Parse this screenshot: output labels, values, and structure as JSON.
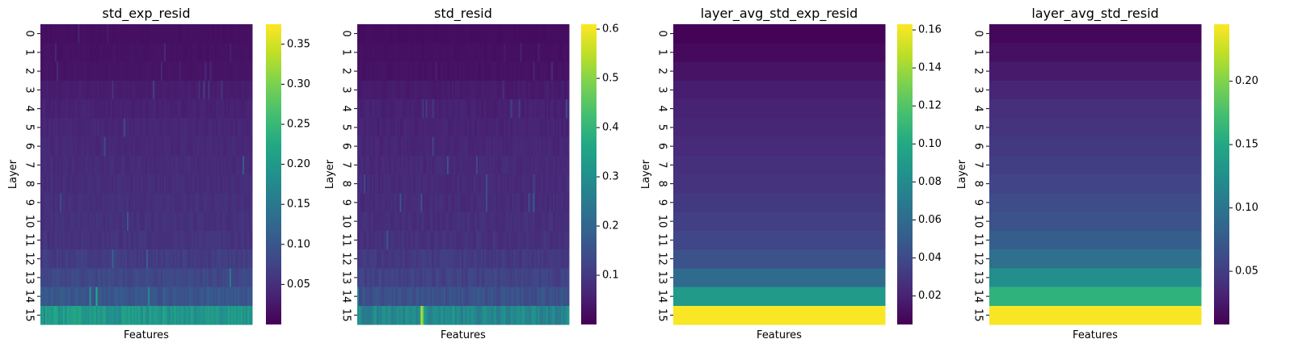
{
  "chart_data": [
    {
      "type": "heatmap",
      "title": "std_exp_resid",
      "xlabel": "Features",
      "ylabel": "Layer",
      "y_categories": [
        "0",
        "1",
        "2",
        "3",
        "4",
        "5",
        "6",
        "7",
        "8",
        "9",
        "10",
        "11",
        "12",
        "13",
        "14",
        "15"
      ],
      "row_base_values": [
        0.015,
        0.018,
        0.02,
        0.03,
        0.035,
        0.04,
        0.042,
        0.045,
        0.047,
        0.05,
        0.052,
        0.055,
        0.065,
        0.08,
        0.1,
        0.2
      ],
      "feature_noise": 0.25,
      "colormap": "viridis",
      "vmin": 0.0,
      "vmax": 0.375,
      "colorbar_ticks": [
        0.05,
        0.1,
        0.15,
        0.2,
        0.25,
        0.3,
        0.35
      ],
      "colorbar_tick_labels": [
        "0.05",
        "0.10",
        "0.15",
        "0.20",
        "0.25",
        "0.30",
        "0.35"
      ]
    },
    {
      "type": "heatmap",
      "title": "std_resid",
      "xlabel": "Features",
      "ylabel": "Layer",
      "y_categories": [
        "0",
        "1",
        "2",
        "3",
        "4",
        "5",
        "6",
        "7",
        "8",
        "9",
        "10",
        "11",
        "12",
        "13",
        "14",
        "15"
      ],
      "row_base_values": [
        0.02,
        0.025,
        0.03,
        0.045,
        0.055,
        0.06,
        0.065,
        0.07,
        0.072,
        0.075,
        0.08,
        0.085,
        0.1,
        0.12,
        0.15,
        0.28
      ],
      "feature_noise": 0.3,
      "colormap": "viridis",
      "vmin": 0.0,
      "vmax": 0.61,
      "colorbar_ticks": [
        0.1,
        0.2,
        0.3,
        0.4,
        0.5,
        0.6
      ],
      "colorbar_tick_labels": [
        "0.1",
        "0.2",
        "0.3",
        "0.4",
        "0.5",
        "0.6"
      ]
    },
    {
      "type": "heatmap",
      "title": "layer_avg_std_exp_resid",
      "xlabel": "Features",
      "ylabel": "Layer",
      "y_categories": [
        "0",
        "1",
        "2",
        "3",
        "4",
        "5",
        "6",
        "7",
        "8",
        "9",
        "10",
        "11",
        "12",
        "13",
        "14",
        "15"
      ],
      "row_base_values": [
        0.006,
        0.009,
        0.013,
        0.018,
        0.02,
        0.022,
        0.024,
        0.026,
        0.028,
        0.031,
        0.034,
        0.038,
        0.045,
        0.06,
        0.09,
        0.162
      ],
      "feature_noise": 0.0,
      "colormap": "viridis",
      "vmin": 0.005,
      "vmax": 0.163,
      "colorbar_ticks": [
        0.02,
        0.04,
        0.06,
        0.08,
        0.1,
        0.12,
        0.14,
        0.16
      ],
      "colorbar_tick_labels": [
        "0.02",
        "0.04",
        "0.06",
        "0.08",
        "0.10",
        "0.12",
        "0.14",
        "0.16"
      ]
    },
    {
      "type": "heatmap",
      "title": "layer_avg_std_resid",
      "xlabel": "Features",
      "ylabel": "Layer",
      "y_categories": [
        "0",
        "1",
        "2",
        "3",
        "4",
        "5",
        "6",
        "7",
        "8",
        "9",
        "10",
        "11",
        "12",
        "13",
        "14",
        "15"
      ],
      "row_base_values": [
        0.012,
        0.018,
        0.025,
        0.033,
        0.04,
        0.043,
        0.047,
        0.051,
        0.056,
        0.062,
        0.068,
        0.078,
        0.095,
        0.125,
        0.16,
        0.243
      ],
      "feature_noise": 0.0,
      "colormap": "viridis",
      "vmin": 0.008,
      "vmax": 0.245,
      "colorbar_ticks": [
        0.05,
        0.1,
        0.15,
        0.2
      ],
      "colorbar_tick_labels": [
        "0.05",
        "0.10",
        "0.15",
        "0.20"
      ]
    }
  ]
}
